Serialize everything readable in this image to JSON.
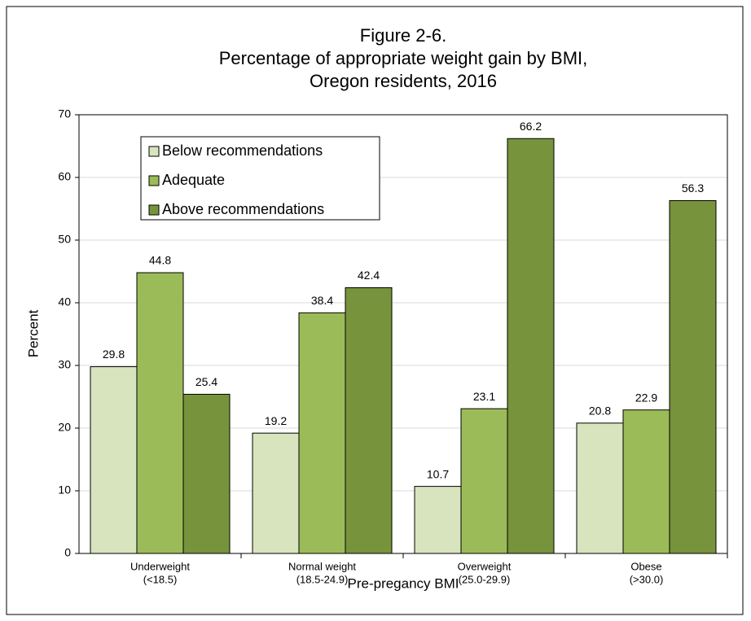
{
  "chart_data": {
    "type": "bar",
    "title": [
      "Figure 2-6.",
      "Percentage of appropriate weight gain by BMI,",
      "Oregon residents, 2016"
    ],
    "x_label": "Pre-pregancy BMI",
    "y_label": "Percent",
    "categories": [
      [
        "Underweight",
        "(<18.5)"
      ],
      [
        "Normal weight",
        "(18.5-24.9)"
      ],
      [
        "Overweight",
        "(25.0-29.9)"
      ],
      [
        "Obese",
        "(>30.0)"
      ]
    ],
    "series": [
      {
        "name": "Below recommendations",
        "color": "#d7e4bd",
        "values": [
          29.8,
          19.2,
          10.7,
          20.8
        ]
      },
      {
        "name": "Adequate",
        "color": "#9bbb59",
        "values": [
          44.8,
          38.4,
          23.1,
          22.9
        ]
      },
      {
        "name": "Above recommendations",
        "color": "#77933c",
        "values": [
          25.4,
          42.4,
          66.2,
          56.3
        ]
      }
    ],
    "ylim": [
      0,
      70
    ],
    "yticks": [
      0,
      10,
      20,
      30,
      40,
      50,
      60,
      70
    ],
    "grid": true,
    "legend": "upper-left"
  }
}
